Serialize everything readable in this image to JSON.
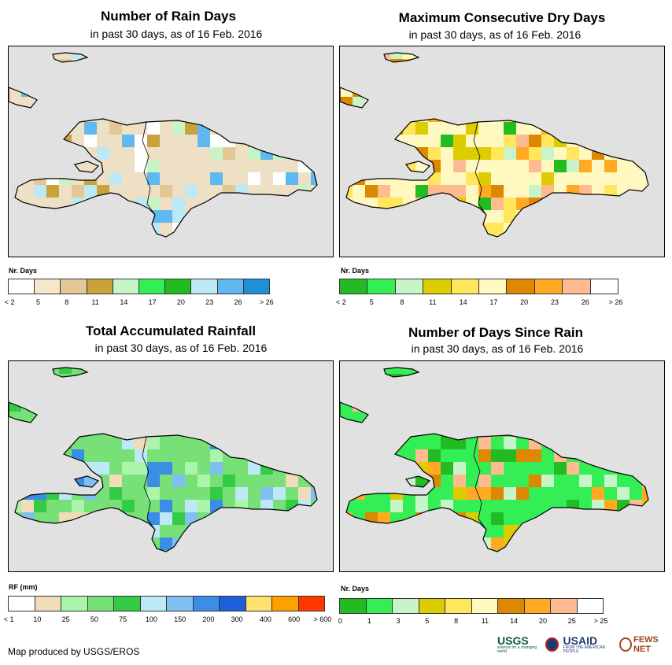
{
  "panels": [
    {
      "id": "rain-days",
      "title": "Number of Rain Days",
      "subtitle": "in past 30 days, as of 16 Feb. 2016",
      "legend": {
        "title": "Nr. Days",
        "colors": [
          "#ffffff",
          "#f5e6cc",
          "#e3c896",
          "#c9a23c",
          "#c8f5c8",
          "#33ee55",
          "#22bb22",
          "#bde8f5",
          "#5fb8f0",
          "#1f8fd6"
        ],
        "labels": [
          "< 2",
          "5",
          "8",
          "11",
          "14",
          "17",
          "20",
          "23",
          "26",
          "> 26"
        ]
      },
      "grid_colors": [
        "#ede0c4",
        "#e3c896",
        "#c9a23c",
        "#ffffff",
        "#bde8f5",
        "#5fb8f0",
        "#c8f5c8"
      ]
    },
    {
      "id": "max-dry-days",
      "title": "Maximum Consecutive Dry Days",
      "subtitle": "in past 30 days, as of 16 Feb. 2016",
      "legend": {
        "title": "Nr. Days",
        "colors": [
          "#22bb22",
          "#33ee55",
          "#c8f5c8",
          "#ddcc00",
          "#ffe65a",
          "#fff8c0",
          "#dd8800",
          "#ffaa22",
          "#ffbb8f",
          "#ffffff"
        ],
        "labels": [
          "< 2",
          "5",
          "8",
          "11",
          "14",
          "17",
          "20",
          "23",
          "26",
          "> 26"
        ]
      },
      "grid_colors": [
        "#fff8c0",
        "#ffe65a",
        "#ddcc00",
        "#dd8800",
        "#ffbb8f",
        "#22bb22",
        "#c8f5c8",
        "#ffaa22"
      ]
    },
    {
      "id": "total-rainfall",
      "title": "Total Accumulated Rainfall",
      "subtitle": "in past 30 days, as of 16 Feb. 2016",
      "legend": {
        "title": "RF (mm)",
        "colors": [
          "#ffffff",
          "#f0dcb8",
          "#aaf5aa",
          "#77e077",
          "#33cc44",
          "#bde8f5",
          "#7fc0f0",
          "#3a8ee6",
          "#1f5ed9",
          "#ffe070",
          "#ffa000",
          "#ff3800"
        ],
        "labels": [
          "< 1",
          "10",
          "25",
          "50",
          "75",
          "100",
          "150",
          "200",
          "300",
          "400",
          "600",
          "> 600"
        ]
      },
      "grid_colors": [
        "#77e077",
        "#aaf5aa",
        "#33cc44",
        "#f0dcb8",
        "#bde8f5",
        "#7fc0f0",
        "#3a8ee6"
      ]
    },
    {
      "id": "days-since-rain",
      "title": "Number of Days Since Rain",
      "subtitle": "in past 30 days, as of 16 Feb. 2016",
      "legend": {
        "title": "Nr. Days",
        "colors": [
          "#22bb22",
          "#33ee55",
          "#c8f5c8",
          "#ddcc00",
          "#ffe65a",
          "#fff8c0",
          "#dd8800",
          "#ffaa22",
          "#ffbb8f",
          "#ffffff"
        ],
        "labels": [
          "0",
          "1",
          "3",
          "5",
          "8",
          "11",
          "14",
          "20",
          "25",
          "> 25"
        ]
      },
      "grid_colors": [
        "#33ee55",
        "#22bb22",
        "#c8f5c8",
        "#ffaa22",
        "#ddcc00",
        "#ffbb8f",
        "#dd8800"
      ]
    }
  ],
  "credit": "Map produced by USGS/EROS",
  "logos": {
    "usgs": "USGS",
    "usgs_tagline": "science for a changing world",
    "usaid": "USAID",
    "usaid_tagline": "FROM THE AMERICAN PEOPLE",
    "fews": "FEWS NET"
  },
  "colors": {
    "map_background": "#e1e1e1",
    "coastline": "#000000"
  }
}
